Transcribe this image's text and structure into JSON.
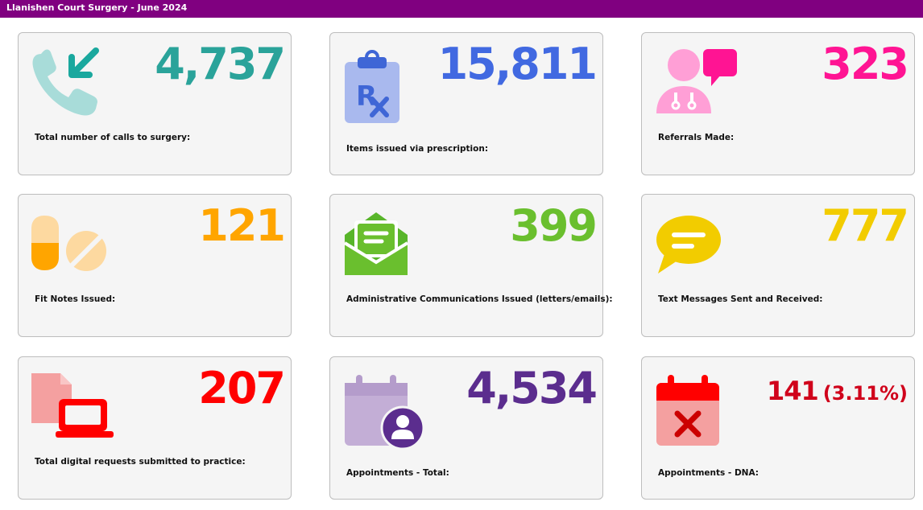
{
  "header": {
    "title": "Llanishen Court Surgery - June 2024"
  },
  "cards": [
    {
      "value": "4,737",
      "label": "Total number of calls to surgery:",
      "color": "#2aa39a",
      "icon": "phone-incoming-icon"
    },
    {
      "value": "15,811",
      "label": "Items issued via prescription:",
      "color": "#4169e1",
      "icon": "prescription-clipboard-icon"
    },
    {
      "value": "323",
      "label": "Referrals Made:",
      "color": "#ff1493",
      "icon": "doctor-speech-bubble-icon"
    },
    {
      "value": "121",
      "label": "Fit Notes Issued:",
      "color": "#ffa500",
      "icon": "pills-icon"
    },
    {
      "value": "399",
      "label": "Administrative Communications Issued (letters/emails):",
      "color": "#6abf2e",
      "icon": "open-envelope-icon"
    },
    {
      "value": "777",
      "label": "Text Messages Sent and Received:",
      "color": "#f2cc00",
      "icon": "chat-bubble-icon"
    },
    {
      "value": "207",
      "label": "Total digital requests submitted to practice:",
      "color": "#ff0000",
      "icon": "laptop-document-icon"
    },
    {
      "value": "4,534",
      "label": "Appointments - Total:",
      "color": "#5b2d8e",
      "icon": "calendar-user-icon"
    },
    {
      "value": "141",
      "pct": "(3.11%)",
      "label": "Appointments - DNA:",
      "color": "#d0021b",
      "icon": "calendar-cross-icon"
    }
  ]
}
